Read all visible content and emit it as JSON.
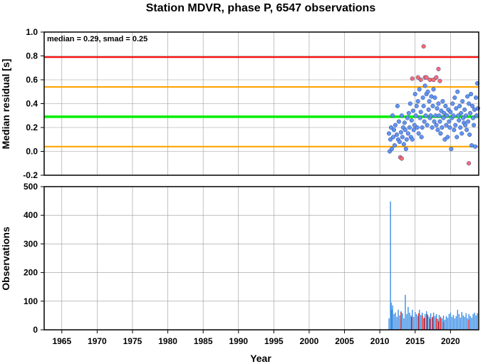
{
  "chart_data": [
    {
      "type": "scatter",
      "title": "Station MDVR, phase P, 6547 observations",
      "ylabel": "Median residual [s]",
      "annotation": "median = 0.29, smad = 0.25",
      "xlim": [
        1962.5,
        2024
      ],
      "ylim": [
        -0.2,
        1.0
      ],
      "yticks": [
        -0.2,
        0.0,
        0.2,
        0.4,
        0.6,
        0.8,
        1.0
      ],
      "ytick_labels": [
        "-0.2",
        "0.0",
        "0.2",
        "0.4",
        "0.6",
        "0.8",
        "1.0"
      ],
      "grid": true,
      "reference_lines": [
        {
          "value": 0.29,
          "color": "#00ee00"
        },
        {
          "value": 0.04,
          "color": "#ffa500"
        },
        {
          "value": 0.54,
          "color": "#ffa500"
        },
        {
          "value": 0.79,
          "color": "#ff0000"
        }
      ],
      "series": [
        {
          "color": "#6495ed",
          "x": [
            2011.3,
            2011.4,
            2011.5,
            2011.6,
            2011.7,
            2011.8,
            2011.9,
            2012.0,
            2012.1,
            2012.2,
            2012.4,
            2012.5,
            2012.6,
            2012.7,
            2012.8,
            2013.0,
            2013.1,
            2013.2,
            2013.3,
            2013.4,
            2013.5,
            2013.6,
            2013.7,
            2013.8,
            2013.9,
            2014.0,
            2014.1,
            2014.2,
            2014.3,
            2014.4,
            2014.5,
            2014.6,
            2014.7,
            2014.8,
            2014.9,
            2015.0,
            2015.1,
            2015.2,
            2015.3,
            2015.4,
            2015.5,
            2015.6,
            2015.7,
            2015.8,
            2015.9,
            2016.0,
            2016.1,
            2016.2,
            2016.3,
            2016.4,
            2016.5,
            2016.6,
            2016.7,
            2016.8,
            2016.9,
            2017.0,
            2017.1,
            2017.2,
            2017.3,
            2017.4,
            2017.5,
            2017.6,
            2017.7,
            2017.8,
            2017.9,
            2018.0,
            2018.1,
            2018.2,
            2018.3,
            2018.4,
            2018.5,
            2018.6,
            2018.7,
            2018.8,
            2018.9,
            2019.0,
            2019.1,
            2019.2,
            2019.3,
            2019.4,
            2019.5,
            2019.6,
            2019.7,
            2019.8,
            2019.9,
            2020.0,
            2020.1,
            2020.2,
            2020.3,
            2020.4,
            2020.5,
            2020.6,
            2020.7,
            2020.8,
            2020.9,
            2021.0,
            2021.1,
            2021.2,
            2021.3,
            2021.4,
            2021.5,
            2021.6,
            2021.7,
            2021.8,
            2021.9,
            2022.0,
            2022.1,
            2022.2,
            2022.3,
            2022.4,
            2022.5,
            2022.6,
            2022.7,
            2022.8,
            2022.9,
            2023.0,
            2023.1,
            2023.2,
            2023.3,
            2023.4,
            2023.5,
            2023.6,
            2023.7,
            2023.8,
            2023.9
          ],
          "y": [
            0.15,
            0.0,
            0.1,
            0.2,
            0.02,
            0.3,
            0.12,
            0.18,
            0.05,
            0.22,
            0.14,
            0.38,
            0.1,
            0.25,
            0.08,
            0.16,
            0.3,
            0.12,
            0.2,
            0.06,
            0.24,
            0.18,
            0.02,
            0.1,
            0.28,
            0.15,
            0.32,
            0.2,
            0.4,
            0.12,
            0.26,
            0.1,
            0.34,
            0.18,
            0.22,
            0.48,
            0.3,
            0.38,
            0.2,
            0.42,
            0.15,
            0.52,
            0.28,
            0.33,
            0.12,
            0.2,
            0.45,
            0.38,
            0.25,
            0.55,
            0.3,
            0.48,
            0.22,
            0.5,
            0.35,
            0.42,
            0.28,
            0.3,
            0.46,
            0.2,
            0.38,
            0.52,
            0.25,
            0.45,
            0.3,
            0.22,
            0.36,
            0.18,
            0.4,
            0.3,
            0.25,
            0.15,
            0.34,
            0.2,
            0.42,
            0.28,
            0.32,
            0.1,
            0.38,
            0.22,
            0.3,
            0.12,
            0.35,
            0.25,
            0.2,
            0.33,
            0.02,
            0.28,
            0.4,
            0.3,
            0.18,
            0.45,
            0.22,
            0.36,
            0.12,
            0.5,
            0.3,
            0.26,
            0.38,
            0.2,
            0.32,
            0.15,
            0.42,
            0.28,
            0.24,
            0.35,
            0.22,
            0.3,
            0.18,
            0.46,
            0.25,
            0.4,
            0.14,
            0.32,
            0.48,
            0.05,
            0.38,
            0.28,
            0.22,
            0.35,
            0.04,
            0.45,
            0.3,
            0.57,
            0.36
          ]
        },
        {
          "color": "#ff6b6b",
          "x": [
            2012.9,
            2013.1,
            2014.6,
            2015.4,
            2015.8,
            2016.2,
            2016.4,
            2016.6,
            2017.1,
            2017.6,
            2018.0,
            2018.3,
            2018.5,
            2022.6
          ],
          "y": [
            -0.05,
            -0.06,
            0.61,
            0.62,
            0.6,
            0.88,
            0.62,
            0.62,
            0.6,
            0.6,
            0.62,
            0.69,
            0.59,
            -0.1
          ]
        }
      ]
    },
    {
      "type": "bar",
      "ylabel": "Observations",
      "xlabel": "Year",
      "xlim": [
        1962.5,
        2024
      ],
      "xticks": [
        1965,
        1970,
        1975,
        1980,
        1985,
        1990,
        1995,
        2000,
        2005,
        2010,
        2015,
        2020
      ],
      "xtick_labels": [
        "1965",
        "1970",
        "1975",
        "1980",
        "1985",
        "1990",
        "1995",
        "2000",
        "2005",
        "2010",
        "2015",
        "2020"
      ],
      "ylim": [
        0,
        500
      ],
      "yticks": [
        0,
        100,
        200,
        300,
        400,
        500
      ],
      "ytick_labels": [
        "0",
        "100",
        "200",
        "300",
        "400",
        "500"
      ],
      "grid": true,
      "series": [
        {
          "color": "#3a8ee6",
          "x": [
            2011.3,
            2011.5,
            2011.6,
            2011.7,
            2011.8,
            2012.0,
            2012.2,
            2012.4,
            2012.6,
            2012.8,
            2013.0,
            2013.2,
            2013.4,
            2013.6,
            2013.8,
            2014.0,
            2014.2,
            2014.4,
            2014.6,
            2014.8,
            2015.0,
            2015.2,
            2015.4,
            2015.6,
            2015.8,
            2016.0,
            2016.2,
            2016.4,
            2016.6,
            2016.8,
            2017.0,
            2017.2,
            2017.4,
            2017.6,
            2017.8,
            2018.0,
            2018.2,
            2018.4,
            2018.6,
            2018.8,
            2019.0,
            2019.2,
            2019.4,
            2019.6,
            2019.8,
            2020.0,
            2020.2,
            2020.4,
            2020.6,
            2020.8,
            2021.0,
            2021.2,
            2021.4,
            2021.6,
            2021.8,
            2022.0,
            2022.2,
            2022.4,
            2022.6,
            2022.8,
            2023.0,
            2023.2,
            2023.4,
            2023.6,
            2023.8
          ],
          "values": [
            40,
            448,
            95,
            70,
            85,
            55,
            60,
            45,
            70,
            50,
            65,
            58,
            40,
            122,
            55,
            80,
            60,
            50,
            70,
            45,
            62,
            55,
            48,
            70,
            52,
            60,
            40,
            55,
            65,
            50,
            45,
            58,
            42,
            60,
            48,
            55,
            38,
            52,
            46,
            40,
            50,
            35,
            48,
            42,
            55,
            60,
            45,
            52,
            40,
            48,
            70,
            55,
            42,
            62,
            50,
            45,
            58,
            40,
            55,
            48,
            42,
            55,
            60,
            50,
            58
          ]
        },
        {
          "color": "#e02020",
          "x": [
            2013.0,
            2014.5,
            2015.5,
            2016.0,
            2016.3,
            2016.7,
            2017.1,
            2017.5,
            2018.0,
            2018.3,
            2018.6,
            2019.0,
            2022.6
          ],
          "values": [
            62,
            45,
            58,
            50,
            42,
            55,
            38,
            46,
            40,
            30,
            42,
            28,
            35
          ]
        }
      ]
    }
  ]
}
